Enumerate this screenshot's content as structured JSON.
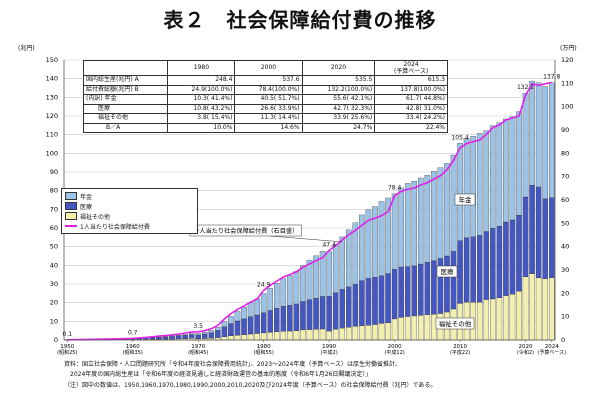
{
  "title": "表２　社会保障給付費の推移",
  "left_unit": "(兆円)",
  "right_unit": "(万円)",
  "legend": {
    "pension": "年金",
    "medical": "医療",
    "welfare": "福祉その他",
    "per_capita": "1人当たり社会保障給付費"
  },
  "colors": {
    "pension": "#9cc3e6",
    "medical": "#4457c2",
    "welfare": "#f3efae",
    "per_capita": "#e020e8",
    "grid": "#cccccc"
  },
  "annotations": {
    "pension": "年金",
    "medical": "医療",
    "welfare": "福祉その他",
    "per_capita_callout": "一人当たり社会保障給付費（右目盛）"
  },
  "table": {
    "headers": [
      "",
      "1980",
      "2000",
      "2020",
      "2024\n(予算ベース)"
    ],
    "rows": [
      [
        "国内総生産(兆円) A",
        "248.4",
        "537.6",
        "535.5",
        "615.3"
      ],
      [
        "給付費総額(兆円) B",
        "24.9(100.0%)",
        "78.4(100.0%)",
        "132.2(100.0%)",
        "137.8(100.0%)"
      ],
      [
        "(内訳) 年金",
        "10.3( 41.4%)",
        "40.5( 51.7%)",
        "55.6( 42.1%)",
        "61.7( 44.8%)"
      ],
      [
        "医療",
        "10.8( 43.2%)",
        "26.6( 33.9%)",
        "42.7( 32.3%)",
        "42.8( 31.0%)"
      ],
      [
        "福祉その他",
        "3.8( 15.4%)",
        "11.3( 14.4%)",
        "33.9( 25.6%)",
        "33.4( 24.2%)"
      ],
      [
        "B／A",
        "10.0%",
        "14.6%",
        "24.7%",
        "22.4%"
      ]
    ]
  },
  "notes": [
    "資料：国立社会保障・人口問題研究所「令和4年度社会保障費用統計」、2023～2024年度（予算ベース）は厚生労働省推計、",
    "　2024年度の国内総生産は「令和6年度の経済見通しと経済財政運営の基本的態度（令和6年1月26日閣議決定）」",
    "（注）図中の数値は、1950,1960,1970,1980,1990,2000,2010,2020及び2024年度（予算ベース）の社会保障給付費（兆円）である。"
  ],
  "chart_data": {
    "type": "bar",
    "stacked": true,
    "title": "表２　社会保障給付費の推移",
    "ylabel_left": "(兆円)",
    "ylabel_right": "(万円)",
    "ylim_left": [
      0,
      150
    ],
    "ylim_right": [
      0,
      120
    ],
    "grid": true,
    "legend_position": "left-middle",
    "x_ticks": [
      {
        "year": 1950,
        "label": "1950",
        "era": "(昭和25)"
      },
      {
        "year": 1960,
        "label": "1960",
        "era": "(昭和35)"
      },
      {
        "year": 1970,
        "label": "1970",
        "era": "(昭和45)"
      },
      {
        "year": 1980,
        "label": "1980",
        "era": "(昭和55)"
      },
      {
        "year": 1990,
        "label": "1990",
        "era": "(平成2)"
      },
      {
        "year": 2000,
        "label": "2000",
        "era": "(平成12)"
      },
      {
        "year": 2010,
        "label": "2010",
        "era": "(平成22)"
      },
      {
        "year": 2020,
        "label": "2020",
        "era": "(令和2)"
      },
      {
        "year": 2024,
        "label": "2024",
        "era": "(予算ベース)"
      }
    ],
    "total_labels": [
      {
        "year": 1950,
        "label": "0.1"
      },
      {
        "year": 1960,
        "label": "0.7"
      },
      {
        "year": 1970,
        "label": "3.5"
      },
      {
        "year": 1980,
        "label": "24.9"
      },
      {
        "year": 1990,
        "label": "47.4"
      },
      {
        "year": 2000,
        "label": "78.4"
      },
      {
        "year": 2010,
        "label": "105.4"
      },
      {
        "year": 2020,
        "label": "132.2"
      },
      {
        "year": 2024,
        "label": "137.8"
      }
    ],
    "years": [
      1950,
      1951,
      1952,
      1953,
      1954,
      1955,
      1956,
      1957,
      1958,
      1959,
      1960,
      1961,
      1962,
      1963,
      1964,
      1965,
      1966,
      1967,
      1968,
      1969,
      1970,
      1971,
      1972,
      1973,
      1974,
      1975,
      1976,
      1977,
      1978,
      1979,
      1980,
      1981,
      1982,
      1983,
      1984,
      1985,
      1986,
      1987,
      1988,
      1989,
      1990,
      1991,
      1992,
      1993,
      1994,
      1995,
      1996,
      1997,
      1998,
      1999,
      2000,
      2001,
      2002,
      2003,
      2004,
      2005,
      2006,
      2007,
      2008,
      2009,
      2010,
      2011,
      2012,
      2013,
      2014,
      2015,
      2016,
      2017,
      2018,
      2019,
      2020,
      2021,
      2022,
      2023,
      2024
    ],
    "series": [
      {
        "name": "年金",
        "key": "pension",
        "values": [
          0.02,
          0.03,
          0.04,
          0.05,
          0.06,
          0.07,
          0.08,
          0.09,
          0.1,
          0.11,
          0.12,
          0.14,
          0.17,
          0.2,
          0.24,
          0.28,
          0.33,
          0.4,
          0.5,
          0.6,
          0.8,
          1.0,
          1.2,
          1.6,
          2.7,
          3.9,
          5.1,
          6.3,
          7.5,
          8.6,
          10.3,
          11.9,
          13.4,
          14.7,
          16.0,
          17.4,
          19.2,
          21.2,
          22.7,
          24.2,
          24.0,
          26.0,
          28.1,
          30.5,
          33.0,
          35.2,
          36.7,
          37.9,
          39.8,
          40.5,
          40.5,
          42.4,
          44.6,
          45.3,
          46.1,
          46.6,
          47.9,
          48.6,
          49.6,
          51.6,
          52.2,
          53.0,
          53.9,
          54.6,
          54.0,
          54.9,
          55.4,
          55.2,
          55.3,
          55.5,
          55.6,
          55.8,
          55.8,
          60.1,
          61.7
        ]
      },
      {
        "name": "医療",
        "key": "medical",
        "values": [
          0.06,
          0.08,
          0.11,
          0.14,
          0.16,
          0.18,
          0.2,
          0.22,
          0.26,
          0.3,
          0.35,
          0.45,
          0.6,
          0.8,
          1.0,
          1.2,
          1.4,
          1.6,
          1.8,
          2.0,
          2.1,
          2.4,
          2.9,
          3.9,
          5.3,
          6.5,
          7.6,
          8.4,
          9.3,
          9.9,
          10.8,
          11.7,
          12.6,
          13.4,
          13.8,
          14.3,
          15.2,
          16.0,
          16.6,
          17.4,
          18.6,
          19.5,
          20.7,
          21.6,
          22.5,
          24.1,
          25.1,
          25.3,
          25.5,
          26.3,
          26.6,
          27.0,
          26.7,
          26.8,
          27.5,
          28.1,
          28.7,
          29.5,
          30.0,
          30.9,
          33.6,
          34.5,
          35.1,
          35.8,
          36.4,
          37.9,
          38.4,
          39.4,
          39.7,
          40.7,
          42.7,
          47.4,
          48.7,
          42.8,
          42.8
        ]
      },
      {
        "name": "福祉その他",
        "key": "welfare",
        "values": [
          0.02,
          0.02,
          0.03,
          0.03,
          0.04,
          0.04,
          0.05,
          0.05,
          0.06,
          0.07,
          0.23,
          0.26,
          0.3,
          0.34,
          0.38,
          0.42,
          0.5,
          0.6,
          0.7,
          0.9,
          0.6,
          0.8,
          1.0,
          1.3,
          1.8,
          2.3,
          2.6,
          2.9,
          3.2,
          3.5,
          3.8,
          4.1,
          4.4,
          4.7,
          4.8,
          5.0,
          5.4,
          5.6,
          5.8,
          5.9,
          4.8,
          5.8,
          6.4,
          6.9,
          7.3,
          7.7,
          7.9,
          8.3,
          8.9,
          9.3,
          11.3,
          12.1,
          12.6,
          12.9,
          13.2,
          13.6,
          13.8,
          14.2,
          15.0,
          16.6,
          19.6,
          20.3,
          20.2,
          20.3,
          21.7,
          22.0,
          22.6,
          23.8,
          24.6,
          26.2,
          33.9,
          35.5,
          33.3,
          32.9,
          33.4
        ]
      },
      {
        "name": "1人当たり社会保障給付費",
        "key": "per_capita",
        "axis": "right",
        "values": [
          0.1,
          0.15,
          0.2,
          0.25,
          0.3,
          0.35,
          0.4,
          0.45,
          0.5,
          0.6,
          0.7,
          0.9,
          1.1,
          1.4,
          1.7,
          1.9,
          2.2,
          2.5,
          3.0,
          3.4,
          3.5,
          4.0,
          4.8,
          6.3,
          9.0,
          11.3,
          13.1,
          14.6,
          16.2,
          17.6,
          21.3,
          23.4,
          25.2,
          27.0,
          28.1,
          29.2,
          31.2,
          32.6,
          34.0,
          35.3,
          38.4,
          40.4,
          42.9,
          45.1,
          47.0,
          49.2,
          51.3,
          52.2,
          53.3,
          55.0,
          61.8,
          63.7,
          64.6,
          65.1,
          66.5,
          67.4,
          69.0,
          70.4,
          73.0,
          77.0,
          82.3,
          84.2,
          85.0,
          85.7,
          88.1,
          91.0,
          92.2,
          94.3,
          95.2,
          96.0,
          104.8,
          109.8,
          109.1,
          109.8,
          110.4
        ]
      }
    ]
  }
}
